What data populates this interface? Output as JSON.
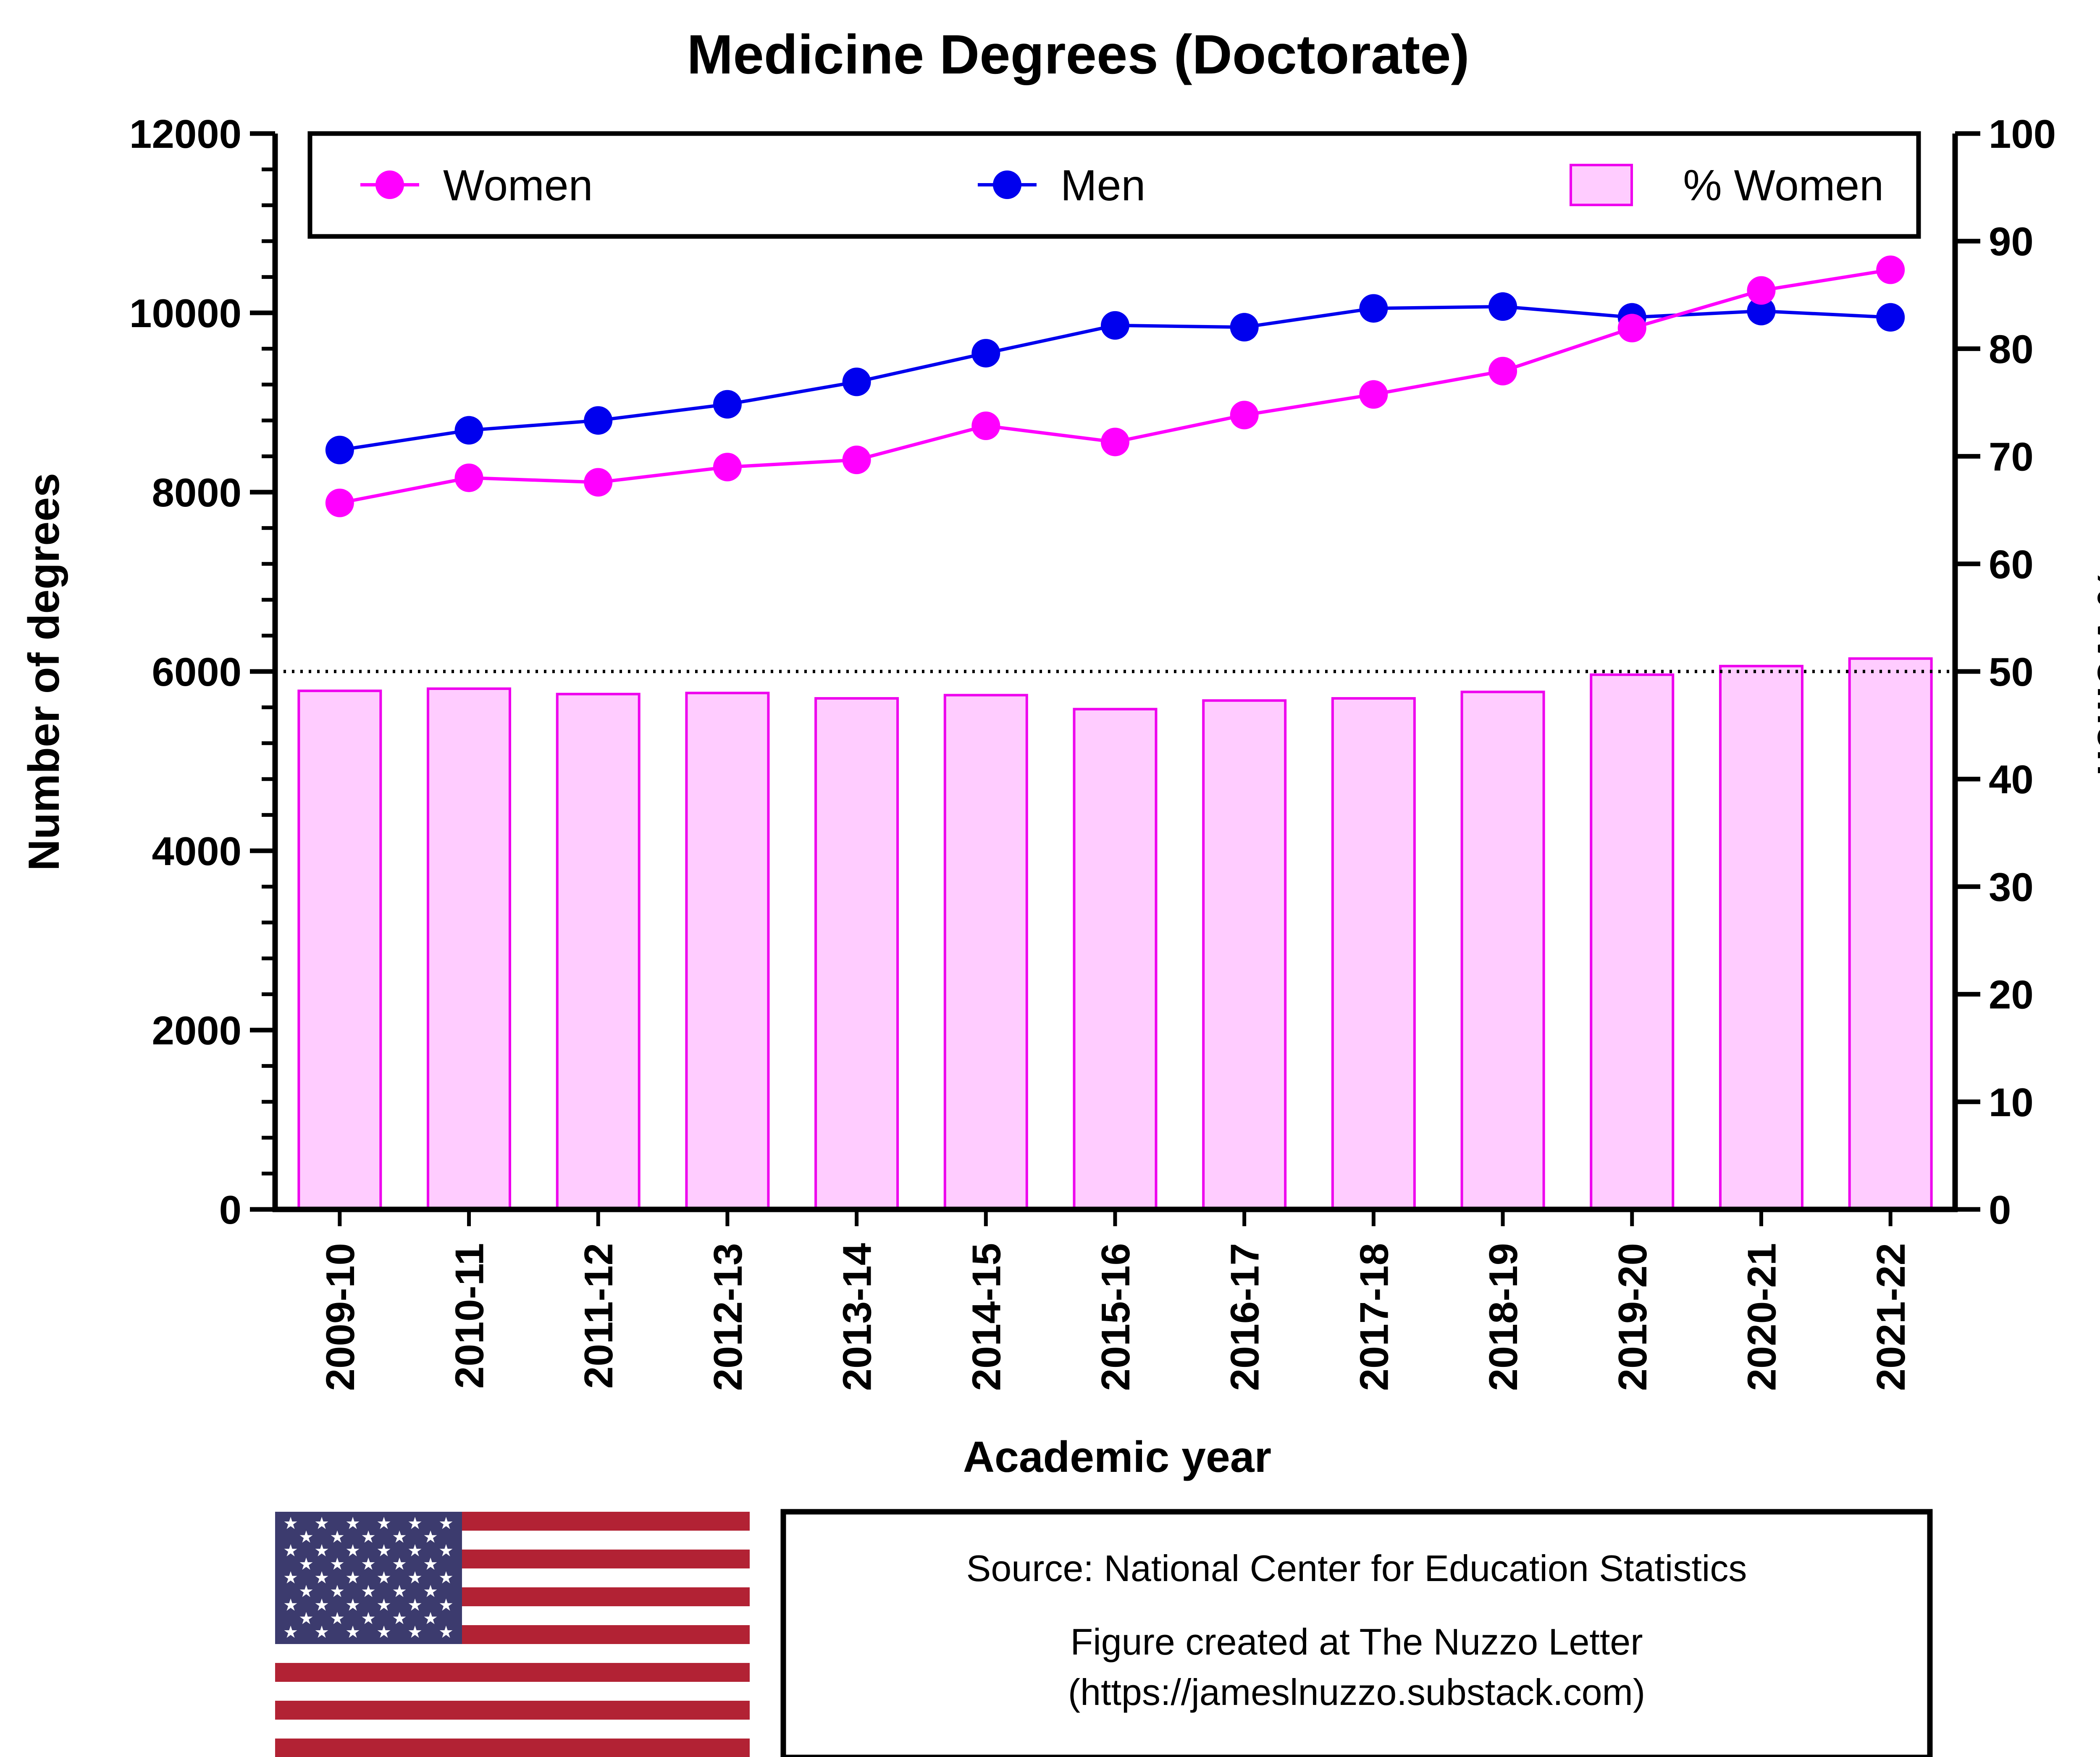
{
  "chart_data": {
    "type": "bar+line",
    "title": "Medicine Degrees (Doctorate)",
    "xlabel": "Academic year",
    "ylabel": "Number of degrees",
    "y2label": "% Women",
    "ylim": [
      0,
      12000
    ],
    "y2lim": [
      0,
      100
    ],
    "yticks": [
      "0",
      "2000",
      "4000",
      "6000",
      "8000",
      "10000",
      "12000"
    ],
    "y2ticks": [
      "0",
      "10",
      "20",
      "30",
      "40",
      "50",
      "60",
      "70",
      "80",
      "90",
      "100"
    ],
    "reference_line": {
      "axis": "y2",
      "value": 50,
      "style": "dotted"
    },
    "categories": [
      "2009-10",
      "2010-11",
      "2011-12",
      "2012-13",
      "2013-14",
      "2014-15",
      "2015-16",
      "2016-17",
      "2017-18",
      "2018-19",
      "2019-20",
      "2020-21",
      "2021-22"
    ],
    "series": [
      {
        "name": "Women",
        "type": "line",
        "axis": "y",
        "color": "#ff00ff",
        "values": [
          7880,
          8160,
          8110,
          8280,
          8360,
          8740,
          8560,
          8860,
          9090,
          9350,
          9830,
          10250,
          10480
        ]
      },
      {
        "name": "Men",
        "type": "line",
        "axis": "y",
        "color": "#0000ee",
        "values": [
          8470,
          8690,
          8800,
          8980,
          9230,
          9550,
          9860,
          9840,
          10050,
          10070,
          9950,
          10020,
          9950
        ]
      },
      {
        "name": "% Women",
        "type": "bar",
        "axis": "y2",
        "color": "#ffccff",
        "edge": "#ee00ee",
        "values": [
          48.2,
          48.4,
          47.9,
          48.0,
          47.5,
          47.8,
          46.5,
          47.3,
          47.5,
          48.1,
          49.7,
          50.5,
          51.2
        ]
      }
    ],
    "legend": {
      "position": "top",
      "items": [
        "Women",
        "Men",
        "% Women"
      ]
    }
  },
  "source_box": {
    "line1": "Source: National Center for Education Statistics",
    "line2": "Figure created at The Nuzzo Letter",
    "line3": "(https://jameslnuzzo.substack.com)"
  },
  "flag": {
    "icon": "us-flag",
    "colors": {
      "red": "#b22234",
      "white": "#ffffff",
      "blue": "#3c3b6e"
    }
  }
}
